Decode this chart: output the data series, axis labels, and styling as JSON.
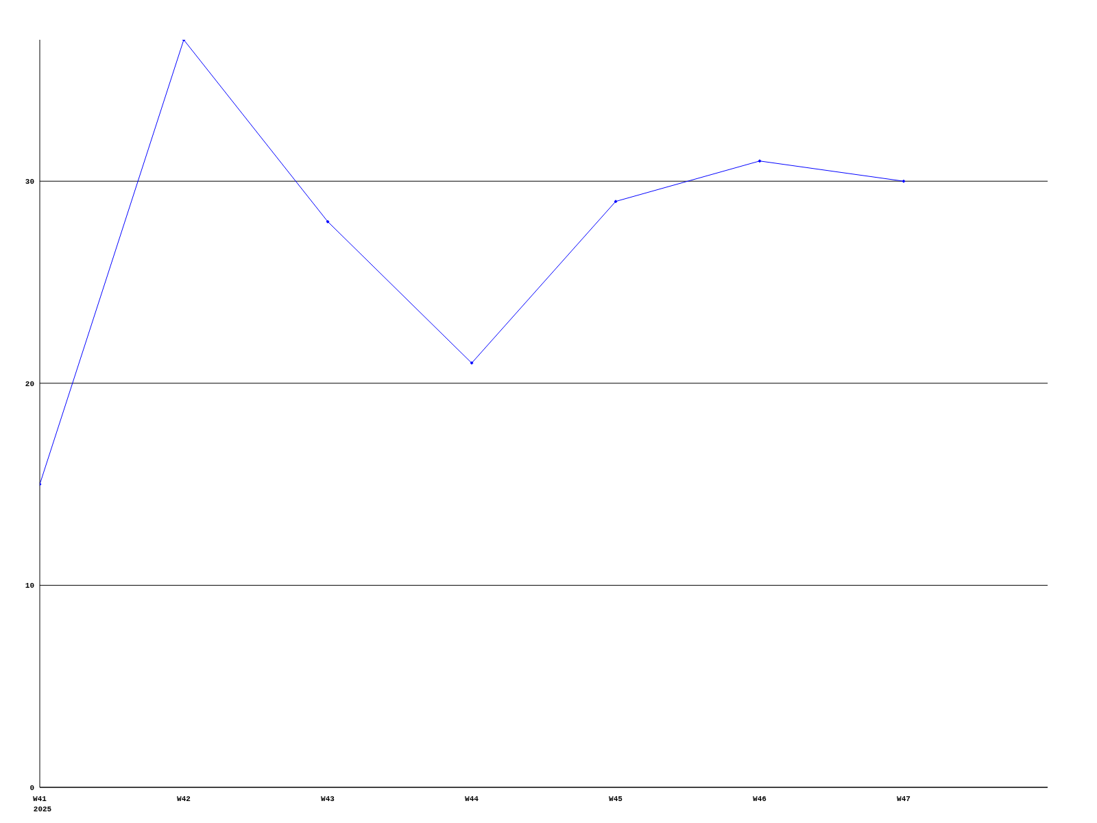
{
  "chart_data": {
    "type": "line",
    "categories": [
      "W41",
      "W42",
      "W43",
      "W44",
      "W45",
      "W46",
      "W47"
    ],
    "series": [
      {
        "color": "#0000ff",
        "values": [
          15,
          37,
          28,
          21,
          29,
          31,
          30
        ]
      }
    ],
    "ylim": [
      0,
      37
    ],
    "yticks": [
      0,
      10,
      20,
      30
    ],
    "grid": "y",
    "marker": "diamond",
    "line_style": "solid",
    "annotations": [
      "2025"
    ]
  }
}
